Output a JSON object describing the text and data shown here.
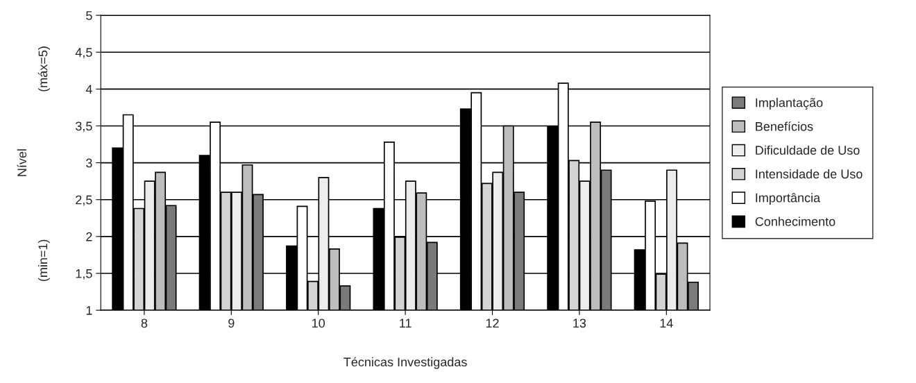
{
  "chart_data": {
    "type": "bar",
    "xlabel": "Técnicas Investigadas",
    "ylabel": "Nível",
    "annotations": [
      "(min=1)",
      "(máx=5)"
    ],
    "categories": [
      "8",
      "9",
      "10",
      "11",
      "12",
      "13",
      "14"
    ],
    "series": [
      {
        "name": "Conhecimento",
        "color": "#000000",
        "values": [
          3.2,
          3.1,
          1.87,
          2.38,
          3.73,
          3.49,
          1.82
        ]
      },
      {
        "name": "Importância",
        "color": "#ffffff",
        "values": [
          3.65,
          3.55,
          2.41,
          3.28,
          3.95,
          4.08,
          2.48
        ]
      },
      {
        "name": "Intensidade de Uso",
        "color": "#d4d4d4",
        "values": [
          2.38,
          2.6,
          1.39,
          1.99,
          2.72,
          3.03,
          1.49
        ]
      },
      {
        "name": "Dificuldade de Uso",
        "color": "#ececec",
        "values": [
          2.75,
          2.6,
          2.8,
          2.75,
          2.87,
          2.75,
          2.9
        ]
      },
      {
        "name": "Benefícios",
        "color": "#bdbdbd",
        "values": [
          2.87,
          2.97,
          1.83,
          2.59,
          3.5,
          3.55,
          1.91
        ]
      },
      {
        "name": "Implantação",
        "color": "#7a7a7a",
        "values": [
          2.42,
          2.57,
          1.33,
          1.92,
          2.6,
          2.9,
          1.38
        ]
      }
    ],
    "ylim": [
      1,
      5
    ],
    "yticks": [
      1,
      {
        "value": 1.5,
        "label": "1,5"
      },
      2,
      {
        "value": 2.5,
        "label": "2,5"
      },
      3,
      {
        "value": 3.5,
        "label": "3,5"
      },
      4,
      {
        "value": 4.5,
        "label": "4,5"
      },
      5
    ],
    "grid": "y",
    "legend": "right"
  }
}
